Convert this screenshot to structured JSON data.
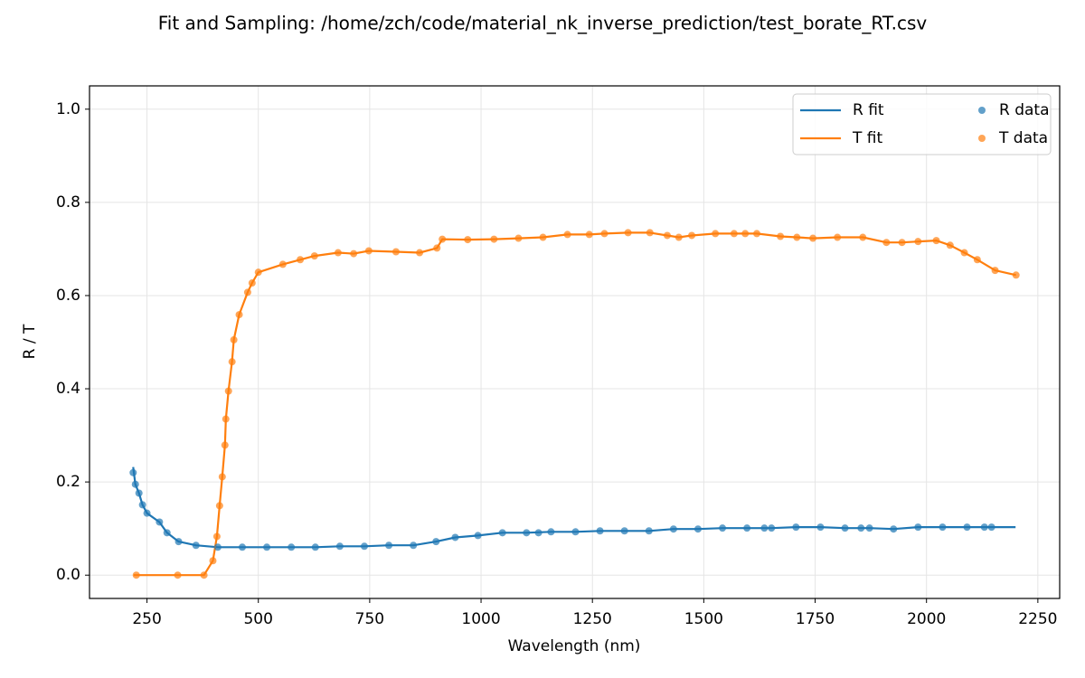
{
  "chart_data": {
    "type": "line",
    "title": "Fit and Sampling: /home/zch/code/material_nk_inverse_prediction/test_borate_RT.csv",
    "x_label": "Wavelength (nm)",
    "y_label": "R / T",
    "xlim": [
      121,
      2299
    ],
    "ylim": [
      -0.05,
      1.05
    ],
    "xticks": [
      250,
      500,
      750,
      1000,
      1250,
      1500,
      1750,
      2000,
      2250
    ],
    "yticks": [
      {
        "value": 0,
        "label": "0.0"
      },
      {
        "value": 0.2,
        "label": "0.2"
      },
      {
        "value": 0.4,
        "label": "0.4"
      },
      {
        "value": 0.6,
        "label": "0.6"
      },
      {
        "value": 0.8,
        "label": "0.8"
      },
      {
        "value": 1,
        "label": "1.0"
      }
    ],
    "grid": true,
    "legend": "upper right",
    "series": [
      {
        "name": "R fit",
        "type": "line",
        "color": "#1f77b4",
        "x": [
          219,
          224,
          232,
          240,
          250,
          278,
          295,
          321,
          360,
          409,
          464,
          519,
          574,
          628,
          683,
          738,
          793,
          848,
          899,
          942,
          993,
          1048,
          1102,
          1157,
          1212,
          1267,
          1322,
          1377,
          1432,
          1487,
          1542,
          1597,
          1652,
          1707,
          1762,
          1817,
          1872,
          1926,
          1981,
          2036,
          2091,
          2146,
          2200
        ],
        "values": [
          0.232,
          0.195,
          0.176,
          0.151,
          0.133,
          0.114,
          0.091,
          0.072,
          0.064,
          0.06,
          0.06,
          0.06,
          0.06,
          0.06,
          0.062,
          0.062,
          0.064,
          0.064,
          0.072,
          0.081,
          0.085,
          0.091,
          0.091,
          0.093,
          0.093,
          0.095,
          0.095,
          0.095,
          0.099,
          0.099,
          0.101,
          0.101,
          0.101,
          0.103,
          0.103,
          0.101,
          0.101,
          0.099,
          0.103,
          0.103,
          0.103,
          0.103,
          0.103
        ]
      },
      {
        "name": "T fit",
        "type": "line",
        "color": "#ff7f0e",
        "x": [
          220,
          319,
          378,
          398,
          407,
          413,
          419,
          425,
          427,
          433,
          441,
          445,
          457,
          476,
          486,
          500,
          555,
          594,
          626,
          679,
          714,
          748,
          809,
          862,
          901,
          913,
          970,
          1029,
          1084,
          1139,
          1194,
          1243,
          1277,
          1330,
          1379,
          1418,
          1444,
          1473,
          1526,
          1568,
          1593,
          1619,
          1672,
          1709,
          1745,
          1800,
          1857,
          1910,
          1945,
          1981,
          2022,
          2053,
          2085,
          2114,
          2154,
          2201
        ],
        "values": [
          0,
          0,
          0,
          0.031,
          0.083,
          0.149,
          0.211,
          0.279,
          0.335,
          0.395,
          0.458,
          0.505,
          0.559,
          0.607,
          0.627,
          0.65,
          0.667,
          0.677,
          0.685,
          0.692,
          0.69,
          0.696,
          0.694,
          0.692,
          0.702,
          0.721,
          0.72,
          0.721,
          0.723,
          0.725,
          0.731,
          0.731,
          0.733,
          0.735,
          0.735,
          0.729,
          0.725,
          0.729,
          0.733,
          0.733,
          0.733,
          0.733,
          0.727,
          0.725,
          0.723,
          0.725,
          0.725,
          0.714,
          0.714,
          0.716,
          0.718,
          0.708,
          0.692,
          0.677,
          0.654,
          0.644
        ]
      },
      {
        "name": "R data",
        "type": "scatter",
        "color": "#1f77b4",
        "x": [
          219,
          224,
          232,
          240,
          250,
          278,
          295,
          321,
          360,
          409,
          464,
          519,
          574,
          628,
          683,
          738,
          793,
          848,
          899,
          942,
          993,
          1048,
          1102,
          1129,
          1157,
          1212,
          1267,
          1322,
          1377,
          1432,
          1487,
          1542,
          1597,
          1636,
          1652,
          1707,
          1762,
          1817,
          1853,
          1872,
          1926,
          1981,
          2036,
          2091,
          2130,
          2146
        ],
        "values": [
          0.22,
          0.195,
          0.176,
          0.151,
          0.133,
          0.114,
          0.091,
          0.072,
          0.064,
          0.06,
          0.06,
          0.06,
          0.06,
          0.06,
          0.062,
          0.062,
          0.064,
          0.064,
          0.072,
          0.081,
          0.085,
          0.091,
          0.091,
          0.091,
          0.093,
          0.093,
          0.095,
          0.095,
          0.095,
          0.099,
          0.099,
          0.101,
          0.101,
          0.101,
          0.101,
          0.103,
          0.103,
          0.101,
          0.101,
          0.101,
          0.099,
          0.103,
          0.103,
          0.103,
          0.103,
          0.103
        ]
      },
      {
        "name": "T data",
        "type": "scatter",
        "color": "#ff7f0e",
        "x": [
          226,
          319,
          378,
          398,
          407,
          413,
          419,
          425,
          427,
          433,
          441,
          445,
          457,
          476,
          486,
          500,
          555,
          594,
          626,
          679,
          714,
          748,
          809,
          862,
          901,
          913,
          970,
          1029,
          1084,
          1139,
          1194,
          1243,
          1277,
          1330,
          1379,
          1418,
          1444,
          1473,
          1526,
          1568,
          1593,
          1619,
          1672,
          1709,
          1745,
          1800,
          1857,
          1910,
          1945,
          1981,
          2022,
          2053,
          2085,
          2114,
          2154,
          2201
        ],
        "values": [
          0,
          0,
          0,
          0.031,
          0.083,
          0.149,
          0.211,
          0.279,
          0.335,
          0.395,
          0.458,
          0.505,
          0.559,
          0.607,
          0.627,
          0.65,
          0.667,
          0.677,
          0.685,
          0.692,
          0.69,
          0.696,
          0.694,
          0.692,
          0.702,
          0.721,
          0.72,
          0.721,
          0.723,
          0.725,
          0.731,
          0.731,
          0.733,
          0.735,
          0.735,
          0.729,
          0.725,
          0.729,
          0.733,
          0.733,
          0.733,
          0.733,
          0.727,
          0.725,
          0.723,
          0.725,
          0.725,
          0.714,
          0.714,
          0.716,
          0.718,
          0.708,
          0.692,
          0.677,
          0.654,
          0.644
        ]
      }
    ]
  }
}
